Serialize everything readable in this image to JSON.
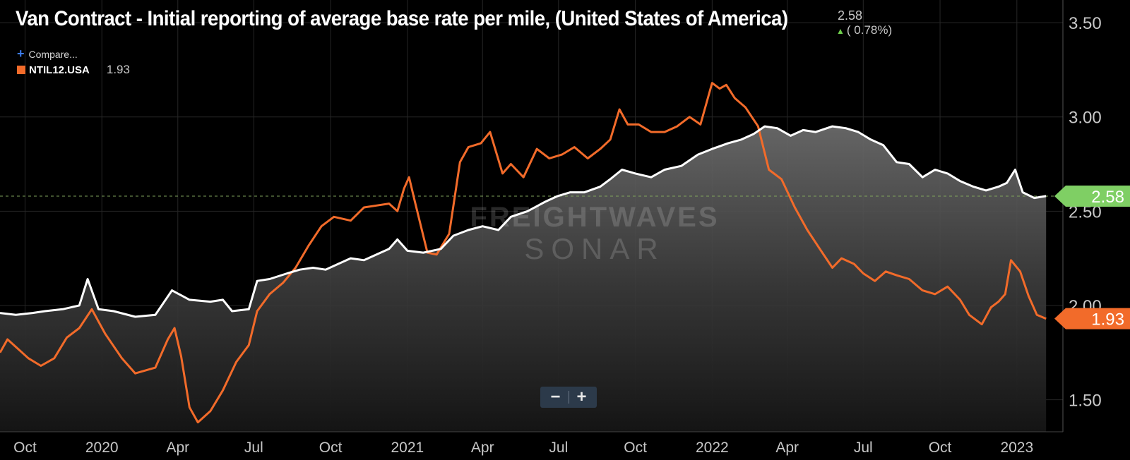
{
  "header": {
    "title": "Van Contract - Initial reporting of average base rate per mile, (United States of America)",
    "current_value": "2.58",
    "change": "( 0.78%)",
    "change_direction": "up"
  },
  "compare_label": "Compare...",
  "legend": {
    "ticker": "NTIL12.USA",
    "value": "1.93",
    "color": "#f26b2a"
  },
  "watermark": {
    "line1": "FREIGHTWAVES",
    "line2": "SONAR"
  },
  "zoom": {
    "minus": "−",
    "plus": "+"
  },
  "colors": {
    "main_line": "#ffffff",
    "compare_line": "#f26b2a",
    "badge_main": "#7fcf64",
    "background": "#000000",
    "grid": "#2a2a2a"
  },
  "chart_data": {
    "type": "line",
    "title": "Van Contract - Initial reporting of average base rate per mile, (United States of America)",
    "x_range": [
      "2019-09-01",
      "2023-02-15"
    ],
    "ylim": [
      1.33,
      3.62
    ],
    "y_ticks": [
      "1.50",
      "2.00",
      "2.50",
      "3.00",
      "3.50"
    ],
    "x_ticks": [
      {
        "date": "2019-10-01",
        "label": "Oct"
      },
      {
        "date": "2020-01-01",
        "label": "2020"
      },
      {
        "date": "2020-04-01",
        "label": "Apr"
      },
      {
        "date": "2020-07-01",
        "label": "Jul"
      },
      {
        "date": "2020-10-01",
        "label": "Oct"
      },
      {
        "date": "2021-01-01",
        "label": "2021"
      },
      {
        "date": "2021-04-01",
        "label": "Apr"
      },
      {
        "date": "2021-07-01",
        "label": "Jul"
      },
      {
        "date": "2021-10-01",
        "label": "Oct"
      },
      {
        "date": "2022-01-01",
        "label": "2022"
      },
      {
        "date": "2022-04-01",
        "label": "Apr"
      },
      {
        "date": "2022-07-01",
        "label": "Jul"
      },
      {
        "date": "2022-10-01",
        "label": "Oct"
      },
      {
        "date": "2023-01-01",
        "label": "2023"
      }
    ],
    "reference_line": 2.58,
    "series": [
      {
        "name": "Van Contract (USA)",
        "last_value": "2.58",
        "badge": "2.58",
        "points": [
          [
            "2019-09-01",
            1.96
          ],
          [
            "2019-09-20",
            1.95
          ],
          [
            "2019-10-10",
            1.96
          ],
          [
            "2019-10-25",
            1.97
          ],
          [
            "2019-11-15",
            1.98
          ],
          [
            "2019-12-05",
            2.0
          ],
          [
            "2019-12-15",
            2.14
          ],
          [
            "2019-12-28",
            1.98
          ],
          [
            "2020-01-15",
            1.97
          ],
          [
            "2020-02-10",
            1.94
          ],
          [
            "2020-03-05",
            1.95
          ],
          [
            "2020-03-25",
            2.08
          ],
          [
            "2020-04-15",
            2.03
          ],
          [
            "2020-05-10",
            2.02
          ],
          [
            "2020-05-25",
            2.03
          ],
          [
            "2020-06-05",
            1.97
          ],
          [
            "2020-06-25",
            1.98
          ],
          [
            "2020-07-05",
            2.13
          ],
          [
            "2020-07-20",
            2.14
          ],
          [
            "2020-08-10",
            2.17
          ],
          [
            "2020-08-25",
            2.19
          ],
          [
            "2020-09-10",
            2.2
          ],
          [
            "2020-09-25",
            2.19
          ],
          [
            "2020-10-10",
            2.22
          ],
          [
            "2020-10-25",
            2.25
          ],
          [
            "2020-11-10",
            2.24
          ],
          [
            "2020-11-25",
            2.27
          ],
          [
            "2020-12-10",
            2.3
          ],
          [
            "2020-12-20",
            2.35
          ],
          [
            "2021-01-01",
            2.29
          ],
          [
            "2021-01-20",
            2.28
          ],
          [
            "2021-02-10",
            2.3
          ],
          [
            "2021-02-25",
            2.37
          ],
          [
            "2021-03-15",
            2.4
          ],
          [
            "2021-04-01",
            2.42
          ],
          [
            "2021-04-20",
            2.4
          ],
          [
            "2021-05-05",
            2.47
          ],
          [
            "2021-05-25",
            2.5
          ],
          [
            "2021-06-15",
            2.55
          ],
          [
            "2021-06-30",
            2.58
          ],
          [
            "2021-07-15",
            2.6
          ],
          [
            "2021-08-01",
            2.6
          ],
          [
            "2021-08-20",
            2.63
          ],
          [
            "2021-09-01",
            2.67
          ],
          [
            "2021-09-15",
            2.72
          ],
          [
            "2021-10-01",
            2.7
          ],
          [
            "2021-10-20",
            2.68
          ],
          [
            "2021-11-05",
            2.72
          ],
          [
            "2021-11-25",
            2.74
          ],
          [
            "2021-12-15",
            2.8
          ],
          [
            "2022-01-01",
            2.83
          ],
          [
            "2022-01-20",
            2.86
          ],
          [
            "2022-02-05",
            2.88
          ],
          [
            "2022-02-20",
            2.91
          ],
          [
            "2022-03-05",
            2.95
          ],
          [
            "2022-03-20",
            2.94
          ],
          [
            "2022-04-05",
            2.9
          ],
          [
            "2022-04-20",
            2.93
          ],
          [
            "2022-05-05",
            2.92
          ],
          [
            "2022-05-25",
            2.95
          ],
          [
            "2022-06-10",
            2.94
          ],
          [
            "2022-06-25",
            2.92
          ],
          [
            "2022-07-10",
            2.88
          ],
          [
            "2022-07-25",
            2.85
          ],
          [
            "2022-08-10",
            2.76
          ],
          [
            "2022-08-25",
            2.75
          ],
          [
            "2022-09-10",
            2.68
          ],
          [
            "2022-09-25",
            2.72
          ],
          [
            "2022-10-10",
            2.7
          ],
          [
            "2022-10-25",
            2.66
          ],
          [
            "2022-11-10",
            2.63
          ],
          [
            "2022-11-25",
            2.61
          ],
          [
            "2022-12-10",
            2.63
          ],
          [
            "2022-12-20",
            2.65
          ],
          [
            "2022-12-30",
            2.72
          ],
          [
            "2023-01-08",
            2.6
          ],
          [
            "2023-01-22",
            2.57
          ],
          [
            "2023-02-05",
            2.58
          ]
        ]
      },
      {
        "name": "NTIL12.USA",
        "last_value": "1.93",
        "badge": "1.93",
        "points": [
          [
            "2019-09-01",
            1.75
          ],
          [
            "2019-09-10",
            1.82
          ],
          [
            "2019-09-20",
            1.78
          ],
          [
            "2019-10-05",
            1.72
          ],
          [
            "2019-10-20",
            1.68
          ],
          [
            "2019-11-05",
            1.72
          ],
          [
            "2019-11-20",
            1.83
          ],
          [
            "2019-12-05",
            1.88
          ],
          [
            "2019-12-20",
            1.98
          ],
          [
            "2020-01-05",
            1.85
          ],
          [
            "2020-01-25",
            1.72
          ],
          [
            "2020-02-10",
            1.64
          ],
          [
            "2020-03-05",
            1.67
          ],
          [
            "2020-03-20",
            1.82
          ],
          [
            "2020-03-28",
            1.88
          ],
          [
            "2020-04-05",
            1.73
          ],
          [
            "2020-04-15",
            1.46
          ],
          [
            "2020-04-25",
            1.38
          ],
          [
            "2020-05-10",
            1.44
          ],
          [
            "2020-05-25",
            1.55
          ],
          [
            "2020-06-10",
            1.7
          ],
          [
            "2020-06-25",
            1.79
          ],
          [
            "2020-07-05",
            1.97
          ],
          [
            "2020-07-20",
            2.06
          ],
          [
            "2020-08-05",
            2.12
          ],
          [
            "2020-08-20",
            2.2
          ],
          [
            "2020-09-05",
            2.32
          ],
          [
            "2020-09-20",
            2.42
          ],
          [
            "2020-10-05",
            2.47
          ],
          [
            "2020-10-25",
            2.45
          ],
          [
            "2020-11-10",
            2.52
          ],
          [
            "2020-11-25",
            2.53
          ],
          [
            "2020-12-10",
            2.54
          ],
          [
            "2020-12-20",
            2.5
          ],
          [
            "2020-12-28",
            2.62
          ],
          [
            "2021-01-03",
            2.68
          ],
          [
            "2021-01-10",
            2.55
          ],
          [
            "2021-01-25",
            2.28
          ],
          [
            "2021-02-05",
            2.27
          ],
          [
            "2021-02-20",
            2.38
          ],
          [
            "2021-03-05",
            2.76
          ],
          [
            "2021-03-15",
            2.84
          ],
          [
            "2021-03-30",
            2.86
          ],
          [
            "2021-04-10",
            2.92
          ],
          [
            "2021-04-25",
            2.7
          ],
          [
            "2021-05-05",
            2.75
          ],
          [
            "2021-05-20",
            2.68
          ],
          [
            "2021-06-05",
            2.83
          ],
          [
            "2021-06-20",
            2.78
          ],
          [
            "2021-07-05",
            2.8
          ],
          [
            "2021-07-20",
            2.84
          ],
          [
            "2021-08-05",
            2.78
          ],
          [
            "2021-08-20",
            2.83
          ],
          [
            "2021-09-01",
            2.88
          ],
          [
            "2021-09-12",
            3.04
          ],
          [
            "2021-09-22",
            2.96
          ],
          [
            "2021-10-05",
            2.96
          ],
          [
            "2021-10-20",
            2.92
          ],
          [
            "2021-11-05",
            2.92
          ],
          [
            "2021-11-20",
            2.95
          ],
          [
            "2021-12-05",
            3.0
          ],
          [
            "2021-12-18",
            2.96
          ],
          [
            "2022-01-01",
            3.18
          ],
          [
            "2022-01-10",
            3.15
          ],
          [
            "2022-01-18",
            3.17
          ],
          [
            "2022-01-28",
            3.1
          ],
          [
            "2022-02-10",
            3.05
          ],
          [
            "2022-02-25",
            2.95
          ],
          [
            "2022-03-10",
            2.72
          ],
          [
            "2022-03-25",
            2.67
          ],
          [
            "2022-04-10",
            2.52
          ],
          [
            "2022-04-25",
            2.4
          ],
          [
            "2022-05-10",
            2.3
          ],
          [
            "2022-05-25",
            2.2
          ],
          [
            "2022-06-05",
            2.25
          ],
          [
            "2022-06-20",
            2.22
          ],
          [
            "2022-07-01",
            2.17
          ],
          [
            "2022-07-15",
            2.13
          ],
          [
            "2022-07-28",
            2.18
          ],
          [
            "2022-08-10",
            2.16
          ],
          [
            "2022-08-25",
            2.14
          ],
          [
            "2022-09-10",
            2.08
          ],
          [
            "2022-09-25",
            2.06
          ],
          [
            "2022-10-10",
            2.1
          ],
          [
            "2022-10-25",
            2.03
          ],
          [
            "2022-11-05",
            1.95
          ],
          [
            "2022-11-20",
            1.9
          ],
          [
            "2022-12-01",
            1.99
          ],
          [
            "2022-12-10",
            2.02
          ],
          [
            "2022-12-18",
            2.06
          ],
          [
            "2022-12-25",
            2.24
          ],
          [
            "2023-01-05",
            2.18
          ],
          [
            "2023-01-15",
            2.05
          ],
          [
            "2023-01-25",
            1.95
          ],
          [
            "2023-02-05",
            1.93
          ]
        ]
      }
    ]
  }
}
